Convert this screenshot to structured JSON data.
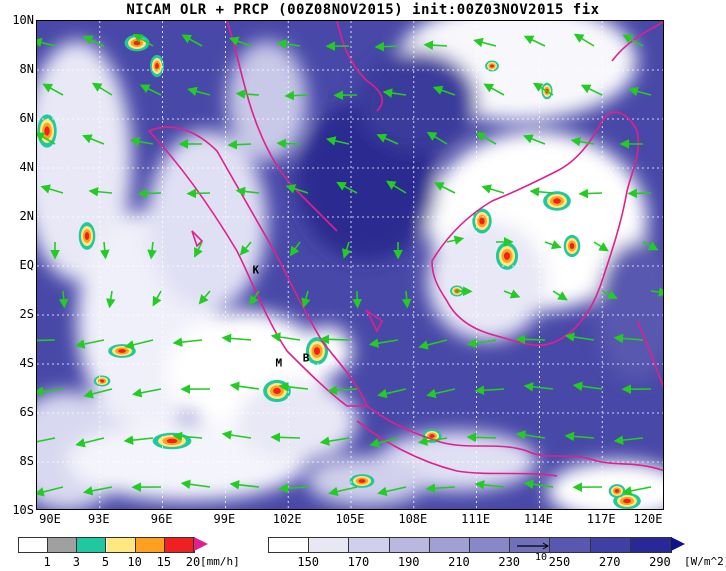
{
  "title": "NICAM OLR + PRCP (00Z08NOV2015) init:00Z03NOV2015 fix",
  "map": {
    "lon_range": [
      90,
      120
    ],
    "lat_range": [
      -10,
      10
    ],
    "lat_labels": [
      "10N",
      "8N",
      "6N",
      "4N",
      "2N",
      "EQ",
      "2S",
      "4S",
      "6S",
      "8S",
      "10S"
    ],
    "lon_labels": [
      "90E",
      "93E",
      "96E",
      "99E",
      "102E",
      "105E",
      "108E",
      "111E",
      "114E",
      "117E",
      "120E"
    ],
    "places": [
      {
        "name": "K",
        "lon": 100.5,
        "lat": -0.2
      },
      {
        "name": "M",
        "lon": 101.6,
        "lat": -4.0
      },
      {
        "name": "B",
        "lon": 102.9,
        "lat": -3.8
      }
    ],
    "colors": {
      "coastline": "#e0208c",
      "wind": "#22cc22",
      "grid": "#ffffff"
    }
  },
  "precip_bar": {
    "ticks": [
      "1",
      "3",
      "5",
      "10",
      "15",
      "20"
    ],
    "unit": "[mm/h]",
    "colors": [
      "#ffffff",
      "#a0a0a0",
      "#20c8a0",
      "#ffe880",
      "#ffa020",
      "#f02020",
      "#e0208c"
    ]
  },
  "olr_bar": {
    "ticks": [
      "150",
      "170",
      "190",
      "210",
      "230",
      "250",
      "270",
      "290"
    ],
    "unit": "[W/m^2]",
    "vector_scale": "10",
    "colors": [
      "#ffffff",
      "#e8e8f4",
      "#d0d0ec",
      "#b8b8e0",
      "#a0a0d4",
      "#8888c8",
      "#7070bc",
      "#5858b0",
      "#4040a4",
      "#282898",
      "#10108c"
    ]
  }
}
